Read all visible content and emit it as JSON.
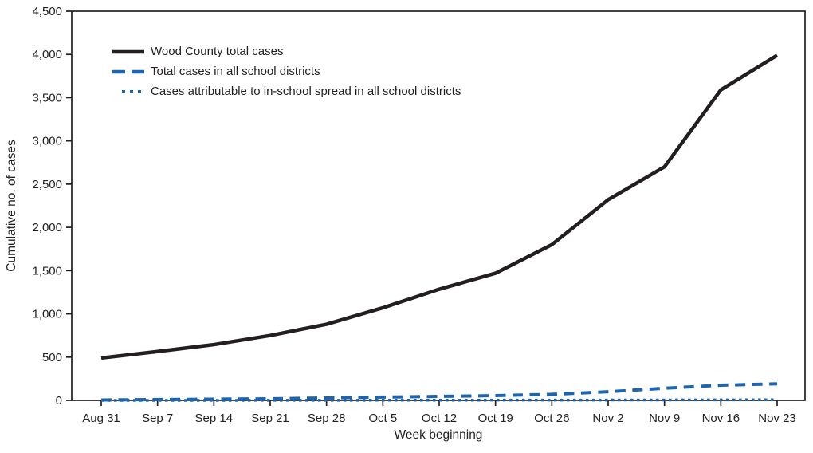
{
  "colors": {
    "foreground": "#231f20",
    "accent_blue": "#1f65ad",
    "background": "#ffffff"
  },
  "chart_data": {
    "type": "line",
    "title": "",
    "xlabel": "Week beginning",
    "ylabel": "Cumulative no. of cases",
    "categories": [
      "Aug 31",
      "Sep 7",
      "Sep 14",
      "Sep 21",
      "Sep 28",
      "Oct 5",
      "Oct 12",
      "Oct 19",
      "Oct 26",
      "Nov 2",
      "Nov 9",
      "Nov 16",
      "Nov 23"
    ],
    "ylim": [
      0,
      4500
    ],
    "y_tick_step": 500,
    "y_tick_labels": [
      "0",
      "500",
      "1,000",
      "1,500",
      "2,000",
      "2,500",
      "3,000",
      "3,500",
      "4,000",
      "4,500"
    ],
    "grid": false,
    "legend_position": "top-left-inside",
    "series": [
      {
        "name": "Wood County total cases",
        "color": "#231f20",
        "style": "solid",
        "values": [
          490,
          565,
          645,
          750,
          880,
          1070,
          1285,
          1470,
          1800,
          2320,
          2700,
          3590,
          3990
        ]
      },
      {
        "name": "Total cases in all school districts",
        "color": "#1f65ad",
        "style": "dashed",
        "values": [
          5,
          10,
          14,
          19,
          28,
          38,
          46,
          55,
          70,
          100,
          140,
          175,
          191
        ]
      },
      {
        "name": "Cases attributable to in-school spread in all school districts",
        "color": "#1f65ad",
        "style": "dotted",
        "values": [
          0,
          0,
          0,
          1,
          1,
          2,
          2,
          3,
          3,
          4,
          5,
          6,
          7
        ]
      }
    ]
  }
}
